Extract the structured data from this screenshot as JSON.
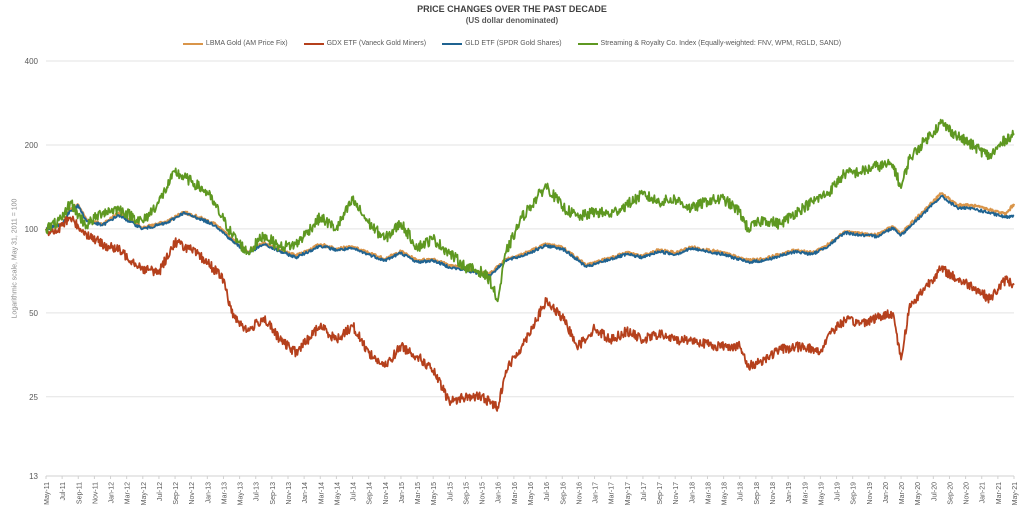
{
  "chart_data": {
    "type": "line",
    "title": "PRICE CHANGES OVER THE PAST DECADE",
    "subtitle": "(US dollar denominated)",
    "ylabel": "Logarithmic scale, May 31, 2011 = 100",
    "xlabel": "",
    "yscale": "log",
    "ylim": [
      13,
      400
    ],
    "yticks": [
      13,
      25,
      50,
      100,
      200,
      400
    ],
    "xlim": [
      "2011-05",
      "2021-05"
    ],
    "xticks": [
      "May-11",
      "Jul-11",
      "Sep-11",
      "Nov-11",
      "Jan-12",
      "Mar-12",
      "May-12",
      "Jul-12",
      "Sep-12",
      "Nov-12",
      "Jan-13",
      "Mar-13",
      "May-13",
      "Jul-13",
      "Sep-13",
      "Nov-13",
      "Jan-14",
      "Mar-14",
      "May-14",
      "Jul-14",
      "Sep-14",
      "Nov-14",
      "Jan-15",
      "Mar-15",
      "May-15",
      "Jul-15",
      "Sep-15",
      "Nov-15",
      "Jan-16",
      "Mar-16",
      "May-16",
      "Jul-16",
      "Sep-16",
      "Nov-16",
      "Jan-17",
      "Mar-17",
      "May-17",
      "Jul-17",
      "Sep-17",
      "Nov-17",
      "Jan-18",
      "Mar-18",
      "May-18",
      "Jul-18",
      "Sep-18",
      "Nov-18",
      "Jan-19",
      "Mar-19",
      "May-19",
      "Jul-19",
      "Sep-19",
      "Nov-19",
      "Jan-20",
      "Mar-20",
      "May-20",
      "Jul-20",
      "Sep-20",
      "Nov-20",
      "Jan-21",
      "Mar-21",
      "May-21"
    ],
    "grid": "horizontal",
    "legend_position": "top",
    "series": [
      {
        "name": "LBMA Gold (AM Price Fix)",
        "color": "#D9954A",
        "x": [
          "2011-05",
          "2011-07",
          "2011-08",
          "2011-09",
          "2011-10",
          "2011-12",
          "2012-02",
          "2012-05",
          "2012-08",
          "2012-10",
          "2012-12",
          "2013-02",
          "2013-04",
          "2013-06",
          "2013-08",
          "2013-10",
          "2013-12",
          "2014-03",
          "2014-05",
          "2014-07",
          "2014-09",
          "2014-11",
          "2015-01",
          "2015-03",
          "2015-05",
          "2015-07",
          "2015-09",
          "2015-11",
          "2015-12",
          "2016-02",
          "2016-04",
          "2016-07",
          "2016-09",
          "2016-11",
          "2016-12",
          "2017-03",
          "2017-05",
          "2017-07",
          "2017-09",
          "2017-11",
          "2018-01",
          "2018-03",
          "2018-05",
          "2018-08",
          "2018-10",
          "2018-12",
          "2019-02",
          "2019-04",
          "2019-06",
          "2019-08",
          "2019-10",
          "2019-12",
          "2020-02",
          "2020-03",
          "2020-05",
          "2020-08",
          "2020-10",
          "2020-12",
          "2021-02",
          "2021-04",
          "2021-05"
        ],
        "values": [
          100,
          104,
          117,
          122,
          108,
          104,
          114,
          101,
          106,
          115,
          110,
          104,
          92,
          83,
          89,
          84,
          80,
          88,
          85,
          86,
          82,
          78,
          83,
          77,
          78,
          74,
          72,
          70,
          69,
          78,
          81,
          88,
          86,
          78,
          74,
          79,
          82,
          80,
          84,
          82,
          86,
          84,
          82,
          77,
          78,
          81,
          84,
          82,
          88,
          98,
          96,
          95,
          102,
          96,
          110,
          134,
          122,
          121,
          117,
          113,
          123
        ]
      },
      {
        "name": "GDX ETF (Vaneck Gold Miners)",
        "color": "#B5401C",
        "x": [
          "2011-05",
          "2011-06",
          "2011-08",
          "2011-09",
          "2011-10",
          "2011-12",
          "2012-02",
          "2012-05",
          "2012-07",
          "2012-09",
          "2012-11",
          "2013-01",
          "2013-03",
          "2013-04",
          "2013-06",
          "2013-08",
          "2013-10",
          "2013-12",
          "2014-03",
          "2014-05",
          "2014-07",
          "2014-09",
          "2014-11",
          "2015-01",
          "2015-03",
          "2015-05",
          "2015-07",
          "2015-09",
          "2015-11",
          "2016-01",
          "2016-02",
          "2016-04",
          "2016-07",
          "2016-09",
          "2016-11",
          "2017-01",
          "2017-03",
          "2017-05",
          "2017-07",
          "2017-09",
          "2017-11",
          "2018-01",
          "2018-04",
          "2018-07",
          "2018-08",
          "2018-10",
          "2018-12",
          "2019-03",
          "2019-05",
          "2019-06",
          "2019-08",
          "2019-10",
          "2019-12",
          "2020-02",
          "2020-03",
          "2020-04",
          "2020-06",
          "2020-08",
          "2020-10",
          "2020-12",
          "2021-02",
          "2021-04",
          "2021-05"
        ],
        "values": [
          100,
          96,
          110,
          102,
          96,
          88,
          84,
          72,
          70,
          90,
          84,
          76,
          66,
          50,
          43,
          48,
          40,
          36,
          45,
          40,
          45,
          36,
          32,
          38,
          35,
          31,
          24,
          25,
          25,
          23,
          31,
          38,
          55,
          48,
          38,
          44,
          40,
          43,
          40,
          42,
          40,
          40,
          38,
          38,
          32,
          34,
          37,
          38,
          36,
          42,
          47,
          46,
          48,
          50,
          34,
          52,
          62,
          72,
          66,
          62,
          56,
          66,
          63
        ]
      },
      {
        "name": "GLD ETF (SPDR Gold Shares)",
        "color": "#1F6391",
        "x": [
          "2011-05",
          "2011-07",
          "2011-08",
          "2011-09",
          "2011-10",
          "2011-12",
          "2012-02",
          "2012-05",
          "2012-08",
          "2012-10",
          "2012-12",
          "2013-02",
          "2013-04",
          "2013-06",
          "2013-08",
          "2013-10",
          "2013-12",
          "2014-03",
          "2014-05",
          "2014-07",
          "2014-09",
          "2014-11",
          "2015-01",
          "2015-03",
          "2015-05",
          "2015-07",
          "2015-09",
          "2015-11",
          "2015-12",
          "2016-02",
          "2016-04",
          "2016-07",
          "2016-09",
          "2016-11",
          "2016-12",
          "2017-03",
          "2017-05",
          "2017-07",
          "2017-09",
          "2017-11",
          "2018-01",
          "2018-03",
          "2018-05",
          "2018-08",
          "2018-10",
          "2018-12",
          "2019-02",
          "2019-04",
          "2019-06",
          "2019-08",
          "2019-10",
          "2019-12",
          "2020-02",
          "2020-03",
          "2020-05",
          "2020-08",
          "2020-10",
          "2020-12",
          "2021-02",
          "2021-04",
          "2021-05"
        ],
        "values": [
          100,
          104,
          116,
          121,
          107,
          103,
          112,
          100,
          105,
          114,
          109,
          103,
          91,
          82,
          88,
          83,
          79,
          87,
          84,
          85,
          81,
          77,
          82,
          76,
          77,
          73,
          71,
          69,
          68,
          77,
          80,
          87,
          85,
          77,
          73,
          78,
          81,
          79,
          83,
          81,
          85,
          83,
          81,
          76,
          77,
          80,
          83,
          81,
          87,
          97,
          95,
          94,
          101,
          95,
          108,
          131,
          119,
          118,
          114,
          110,
          112
        ]
      },
      {
        "name": "Streaming & Royalty Co. Index (Equally-weighted: FNV, WPM, RGLD, SAND)",
        "color": "#5E9821",
        "x": [
          "2011-05",
          "2011-07",
          "2011-08",
          "2011-09",
          "2011-10",
          "2011-12",
          "2012-02",
          "2012-05",
          "2012-07",
          "2012-09",
          "2012-11",
          "2013-01",
          "2013-03",
          "2013-04",
          "2013-06",
          "2013-08",
          "2013-10",
          "2013-12",
          "2014-03",
          "2014-05",
          "2014-07",
          "2014-09",
          "2014-11",
          "2015-01",
          "2015-03",
          "2015-05",
          "2015-07",
          "2015-09",
          "2015-11",
          "2015-12",
          "2016-01",
          "2016-02",
          "2016-04",
          "2016-07",
          "2016-09",
          "2016-11",
          "2017-01",
          "2017-03",
          "2017-05",
          "2017-07",
          "2017-09",
          "2017-11",
          "2018-01",
          "2018-03",
          "2018-05",
          "2018-07",
          "2018-08",
          "2018-10",
          "2018-12",
          "2019-02",
          "2019-04",
          "2019-06",
          "2019-08",
          "2019-10",
          "2019-12",
          "2020-02",
          "2020-03",
          "2020-04",
          "2020-06",
          "2020-08",
          "2020-10",
          "2020-12",
          "2021-02",
          "2021-04",
          "2021-05"
        ],
        "values": [
          100,
          108,
          125,
          112,
          103,
          115,
          118,
          106,
          125,
          160,
          148,
          135,
          108,
          96,
          82,
          95,
          86,
          88,
          110,
          100,
          127,
          105,
          92,
          105,
          86,
          92,
          82,
          73,
          70,
          66,
          55,
          82,
          110,
          143,
          120,
          110,
          115,
          113,
          122,
          133,
          125,
          128,
          118,
          126,
          128,
          115,
          100,
          108,
          104,
          115,
          125,
          135,
          158,
          160,
          168,
          170,
          140,
          178,
          208,
          240,
          215,
          198,
          182,
          210,
          220
        ]
      }
    ]
  }
}
